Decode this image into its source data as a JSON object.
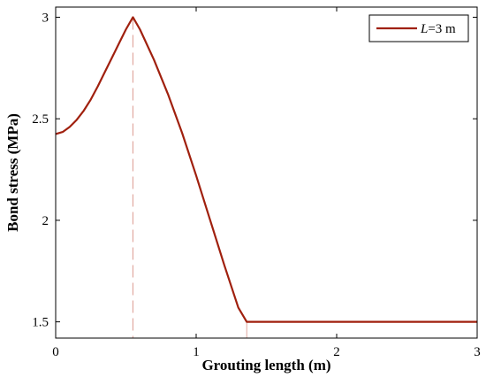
{
  "chart_data": {
    "type": "line",
    "title": "",
    "xlabel": "Grouting length (m)",
    "ylabel": "Bond stress (MPa)",
    "xlim": [
      0,
      3
    ],
    "ylim": [
      1.42,
      3.05
    ],
    "xticks": [
      0,
      1,
      2,
      3
    ],
    "yticks": [
      1.5,
      2,
      2.5,
      3
    ],
    "xtick_labels": [
      "0",
      "1",
      "2",
      "3"
    ],
    "ytick_labels": [
      "1.5",
      "2",
      "2.5",
      "3"
    ],
    "grid": false,
    "legend_placement": "top-right",
    "series": [
      {
        "name_italic": "L",
        "name_rest": "=3 m",
        "color": "#a0200e",
        "x": [
          0,
          0.05,
          0.1,
          0.15,
          0.2,
          0.25,
          0.3,
          0.35,
          0.4,
          0.45,
          0.5,
          0.55,
          0.6,
          0.7,
          0.8,
          0.9,
          1.0,
          1.1,
          1.2,
          1.3,
          1.36,
          1.5,
          2.0,
          2.5,
          3.0
        ],
        "values": [
          2.425,
          2.435,
          2.46,
          2.495,
          2.54,
          2.595,
          2.66,
          2.73,
          2.8,
          2.87,
          2.94,
          3.0,
          2.94,
          2.79,
          2.62,
          2.43,
          2.22,
          2.0,
          1.78,
          1.57,
          1.5,
          1.5,
          1.5,
          1.5,
          1.5
        ]
      }
    ],
    "peak_x": 0.55,
    "transition_x": 1.36
  }
}
